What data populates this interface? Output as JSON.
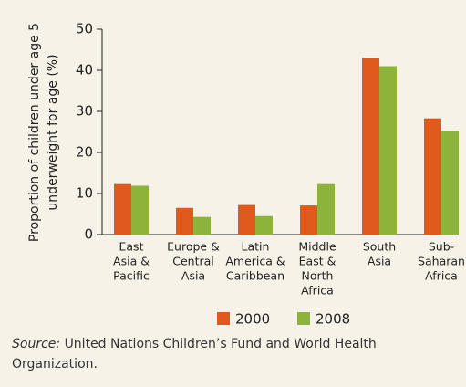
{
  "chart_data": {
    "type": "bar",
    "ylabel": [
      "Proportion of children under age 5",
      "underweight for age (%)"
    ],
    "categories": [
      [
        "East",
        "Asia &",
        "Pacific"
      ],
      [
        "Europe &",
        "Central",
        "Asia"
      ],
      [
        "Latin",
        "America &",
        "Caribbean"
      ],
      [
        "Middle",
        "East &",
        "North",
        "Africa"
      ],
      [
        "South",
        "Asia"
      ],
      [
        "Sub-",
        "Saharan",
        "Africa"
      ]
    ],
    "series": [
      {
        "name": "2000",
        "color": "#e05a1e",
        "values": [
          12.3,
          6.5,
          7.2,
          7.1,
          43,
          28.3
        ]
      },
      {
        "name": "2008",
        "color": "#8db33a",
        "values": [
          11.9,
          4.3,
          4.5,
          12.3,
          41,
          25.2
        ]
      }
    ],
    "ylim": [
      0,
      50
    ],
    "yticks": [
      0,
      10,
      20,
      30,
      40,
      50
    ],
    "source_label": "Source:",
    "source": "United Nations Children’s Fund and World Health Organization."
  }
}
